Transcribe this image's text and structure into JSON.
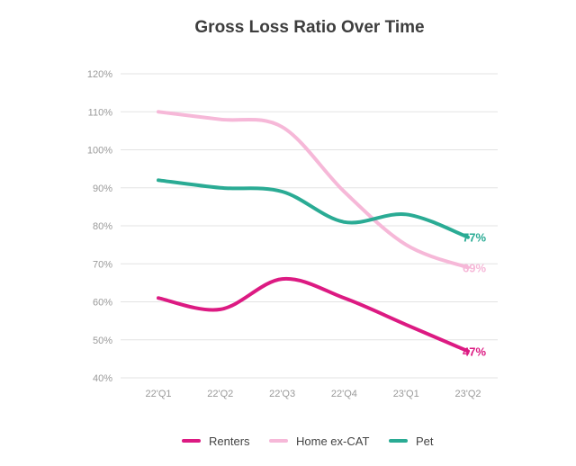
{
  "chart_data": {
    "type": "line",
    "title": "Gross Loss Ratio Over Time",
    "xlabel": "",
    "ylabel": "",
    "categories": [
      "22'Q1",
      "22'Q2",
      "22'Q3",
      "22'Q4",
      "23'Q1",
      "23'Q2"
    ],
    "ylim": [
      40,
      120
    ],
    "yticks": [
      40,
      50,
      60,
      70,
      80,
      90,
      100,
      110,
      120
    ],
    "ytick_labels": [
      "40%",
      "50%",
      "60%",
      "70%",
      "80%",
      "90%",
      "100%",
      "110%",
      "120%"
    ],
    "grid": true,
    "legend_position": "bottom",
    "series": [
      {
        "name": "Renters",
        "color": "#dc1a82",
        "values": [
          61,
          58,
          66,
          61,
          54,
          47
        ],
        "end_label": "47%"
      },
      {
        "name": "Home ex-CAT",
        "color": "#f6b8d8",
        "values": [
          110,
          108,
          106,
          89,
          75,
          69
        ],
        "end_label": "69%"
      },
      {
        "name": "Pet",
        "color": "#2aab94",
        "values": [
          92,
          90,
          89,
          81,
          83,
          77
        ],
        "end_label": "77%"
      }
    ]
  }
}
